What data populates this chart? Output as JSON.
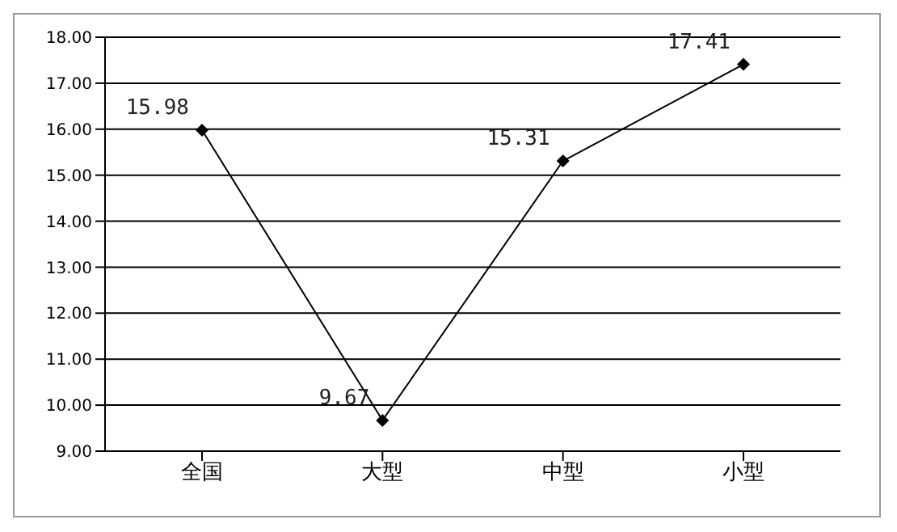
{
  "chart_data": {
    "type": "line",
    "categories": [
      "全国",
      "大型",
      "中型",
      "小型"
    ],
    "series": [
      {
        "color": "#000000",
        "values": [
          15.98,
          9.67,
          15.31,
          17.41
        ]
      }
    ],
    "ylim": [
      9,
      18
    ],
    "yticks": [
      {
        "value": 9,
        "label": "9.00"
      },
      {
        "value": 10,
        "label": "10.00"
      },
      {
        "value": 11,
        "label": "11.00"
      },
      {
        "value": 12,
        "label": "12.00"
      },
      {
        "value": 13,
        "label": "13.00"
      },
      {
        "value": 14,
        "label": "14.00"
      },
      {
        "value": 15,
        "label": "15.00"
      },
      {
        "value": 16,
        "label": "16.00"
      },
      {
        "value": 17,
        "label": "17.00"
      },
      {
        "value": 18,
        "label": "18.00"
      }
    ],
    "grid": "y",
    "legend": false,
    "marker": "diamond",
    "line_style": "solid",
    "data_labels": true
  }
}
